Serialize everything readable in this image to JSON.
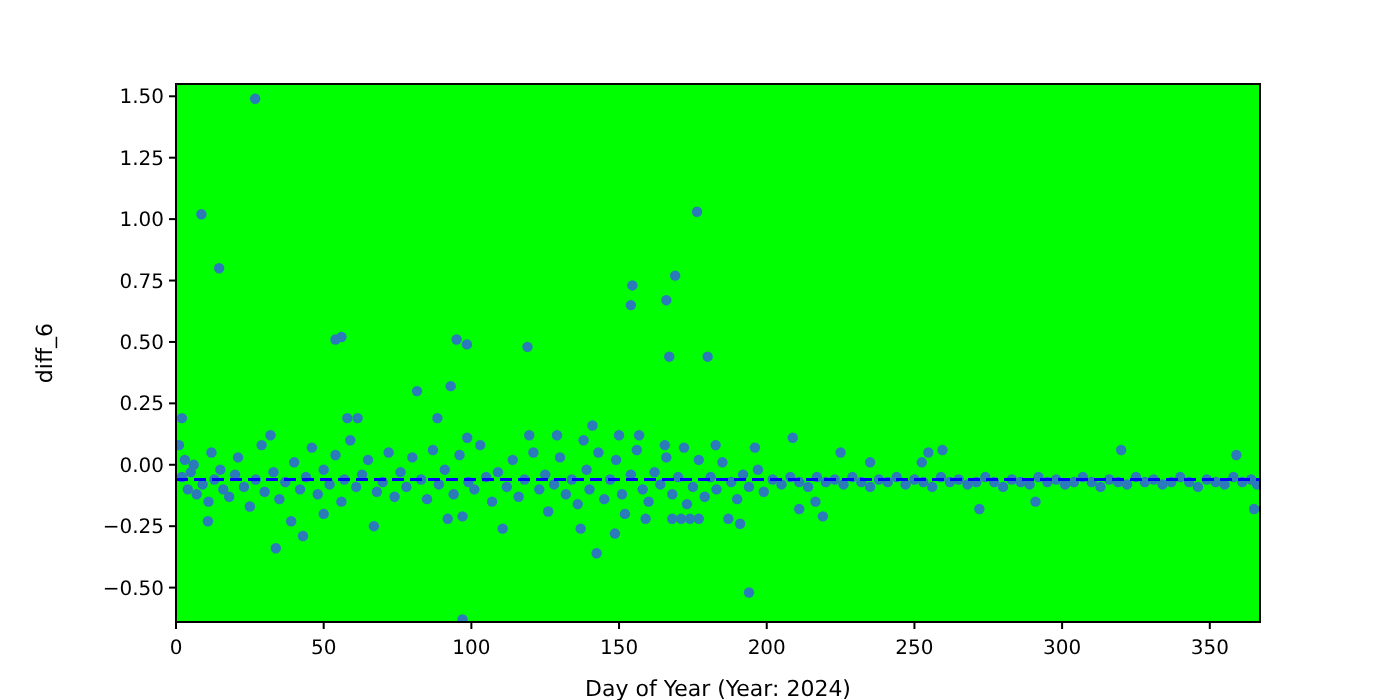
{
  "chart_data": {
    "type": "scatter",
    "xlabel": "Day of Year (Year: 2024)",
    "ylabel": "diff_6",
    "xlim": [
      0,
      367
    ],
    "ylim": [
      -0.64,
      1.55
    ],
    "xticks": [
      0,
      50,
      100,
      150,
      200,
      250,
      300,
      350
    ],
    "yticks": [
      {
        "value": -0.5,
        "label": "−0.50"
      },
      {
        "value": -0.25,
        "label": "−0.25"
      },
      {
        "value": 0,
        "label": "0.00"
      },
      {
        "value": 0.25,
        "label": "0.25"
      },
      {
        "value": 0.5,
        "label": "0.50"
      },
      {
        "value": 0.75,
        "label": "0.75"
      },
      {
        "value": 1.0,
        "label": "1.00"
      },
      {
        "value": 1.25,
        "label": "1.25"
      },
      {
        "value": 1.5,
        "label": "1.50"
      }
    ],
    "grid": false,
    "marker": "circle",
    "ref_lines": [
      {
        "axis": "y",
        "value": -0.06,
        "color": "#0000ff",
        "line_style": "dashed"
      }
    ],
    "series": [
      {
        "color": "#2b7bba",
        "x": [
          1,
          2,
          3,
          4,
          5,
          6,
          7,
          9,
          11,
          12,
          13,
          15,
          16,
          18,
          20,
          21,
          23,
          25,
          27,
          29,
          30,
          32,
          33,
          35,
          37,
          40,
          42,
          44,
          46,
          48,
          50,
          52,
          54,
          56,
          57,
          59,
          61,
          63,
          65,
          68,
          70,
          72,
          74,
          76,
          78,
          80,
          83,
          85,
          87,
          89,
          91,
          94,
          96,
          99,
          101,
          103,
          105,
          107,
          109,
          112,
          114,
          116,
          118,
          121,
          123,
          125,
          128,
          130,
          132,
          134,
          136,
          139,
          140,
          143,
          145,
          147,
          149,
          151,
          152,
          154,
          156,
          158,
          160,
          162,
          164,
          166,
          168,
          170,
          172,
          173,
          175,
          177,
          179,
          181,
          183,
          185,
          188,
          190,
          192,
          194,
          197,
          199,
          202,
          205,
          208,
          211,
          214,
          217,
          220,
          223,
          226,
          229,
          232,
          235,
          238,
          241,
          244,
          247,
          250,
          253,
          256,
          259,
          262,
          265,
          268,
          271,
          274,
          277,
          280,
          283,
          286,
          289,
          292,
          295,
          298,
          301,
          304,
          307,
          310,
          313,
          316,
          319,
          322,
          325,
          328,
          331,
          334,
          337,
          340,
          343,
          346,
          349,
          352,
          355,
          358,
          361,
          364,
          366,
          26.8,
          8.6,
          14.6,
          54,
          56,
          95,
          98.5,
          119,
          81.6,
          93,
          176.4,
          154.5,
          154,
          169,
          166,
          167,
          180,
          194,
          97,
          33.8,
          43,
          58,
          61.5,
          2,
          88.5,
          119.6,
          129,
          98.6,
          10.8,
          67,
          110.6,
          97,
          92,
          39,
          50,
          142.4,
          137,
          141,
          138,
          150,
          156.8,
          165.5,
          182.7,
          196,
          208.8,
          225,
          235,
          252.5,
          254.7,
          259.5,
          320,
          359,
          365,
          272,
          291,
          219,
          211,
          216.5,
          168,
          171,
          174,
          177,
          187,
          191,
          148.6,
          159,
          126
        ],
        "values": [
          0.08,
          -0.05,
          0.02,
          -0.1,
          -0.03,
          0.0,
          -0.12,
          -0.08,
          -0.15,
          0.05,
          -0.06,
          -0.02,
          -0.1,
          -0.13,
          -0.04,
          0.03,
          -0.09,
          -0.17,
          -0.06,
          0.08,
          -0.11,
          0.12,
          -0.03,
          -0.14,
          -0.07,
          0.01,
          -0.1,
          -0.05,
          0.07,
          -0.12,
          -0.02,
          -0.08,
          0.04,
          -0.15,
          -0.06,
          0.1,
          -0.09,
          -0.04,
          0.02,
          -0.11,
          -0.07,
          0.05,
          -0.13,
          -0.03,
          -0.09,
          0.03,
          -0.06,
          -0.14,
          0.06,
          -0.08,
          -0.02,
          -0.12,
          0.04,
          -0.07,
          -0.1,
          0.08,
          -0.05,
          -0.15,
          -0.03,
          -0.09,
          0.02,
          -0.13,
          -0.06,
          0.05,
          -0.1,
          -0.04,
          -0.08,
          0.03,
          -0.12,
          -0.06,
          -0.16,
          -0.02,
          -0.1,
          0.05,
          -0.14,
          -0.06,
          0.02,
          -0.12,
          -0.2,
          -0.04,
          0.06,
          -0.1,
          -0.15,
          -0.03,
          -0.08,
          0.03,
          -0.12,
          -0.05,
          0.07,
          -0.16,
          -0.09,
          0.02,
          -0.13,
          -0.05,
          -0.1,
          0.01,
          -0.07,
          -0.14,
          -0.04,
          -0.09,
          -0.02,
          -0.11,
          -0.06,
          -0.08,
          -0.05,
          -0.07,
          -0.09,
          -0.05,
          -0.07,
          -0.06,
          -0.08,
          -0.05,
          -0.07,
          -0.09,
          -0.06,
          -0.07,
          -0.05,
          -0.08,
          -0.06,
          -0.07,
          -0.09,
          -0.05,
          -0.07,
          -0.06,
          -0.08,
          -0.07,
          -0.05,
          -0.07,
          -0.09,
          -0.06,
          -0.07,
          -0.08,
          -0.05,
          -0.07,
          -0.06,
          -0.08,
          -0.07,
          -0.05,
          -0.07,
          -0.09,
          -0.06,
          -0.07,
          -0.08,
          -0.05,
          -0.07,
          -0.06,
          -0.08,
          -0.07,
          -0.05,
          -0.07,
          -0.09,
          -0.06,
          -0.07,
          -0.08,
          -0.05,
          -0.07,
          -0.06,
          -0.08,
          1.49,
          1.02,
          0.8,
          0.51,
          0.52,
          0.51,
          0.49,
          0.48,
          0.3,
          0.32,
          1.03,
          0.73,
          0.65,
          0.77,
          0.67,
          0.44,
          0.44,
          -0.52,
          -0.63,
          -0.34,
          -0.29,
          0.19,
          0.19,
          0.19,
          0.19,
          0.12,
          0.12,
          0.11,
          -0.23,
          -0.25,
          -0.26,
          -0.21,
          -0.22,
          -0.23,
          -0.2,
          -0.36,
          -0.26,
          0.16,
          0.1,
          0.12,
          0.12,
          0.08,
          0.08,
          0.07,
          0.11,
          0.05,
          0.01,
          0.01,
          0.05,
          0.06,
          0.06,
          0.04,
          -0.18,
          -0.18,
          -0.15,
          -0.21,
          -0.18,
          -0.15,
          -0.22,
          -0.22,
          -0.22,
          -0.22,
          -0.22,
          -0.24,
          -0.28,
          -0.22,
          -0.19
        ]
      }
    ]
  }
}
